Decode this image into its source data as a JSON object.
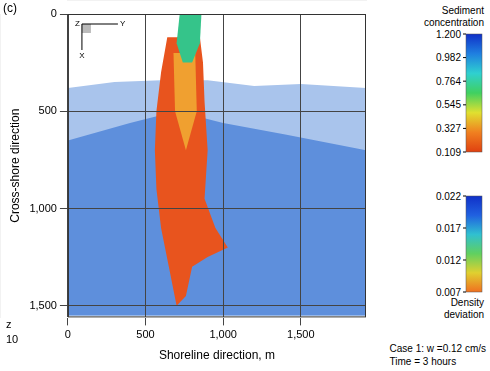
{
  "chart_data": {
    "type": "area",
    "panel_label": "(c)",
    "x_label": "Shoreline direction, m",
    "y_label": "Cross-shore direction",
    "xlim": [
      0,
      1920
    ],
    "xticks": [
      0,
      500,
      1000,
      1500
    ],
    "ylim": [
      0,
      1560
    ],
    "yticks": [
      0,
      500,
      1000,
      1500
    ],
    "grid": true,
    "axes_labels": [
      "Z",
      "Y",
      "X"
    ],
    "corner_labels": [
      "z",
      "10"
    ],
    "annotations": [
      "Case 1: w =0.12 cm/s",
      "Time = 3 hours"
    ],
    "series": [
      {
        "color": "#a9c4ec",
        "x": [
          0,
          300,
          600,
          900,
          1200,
          1500,
          1920,
          1920,
          0
        ],
        "values": [
          380,
          350,
          340,
          340,
          370,
          360,
          380,
          1550,
          1550
        ]
      },
      {
        "color": "#5e8fdc",
        "x": [
          0,
          400,
          700,
          1000,
          1400,
          1920,
          1920,
          0
        ],
        "values": [
          650,
          560,
          500,
          560,
          620,
          700,
          1550,
          1550
        ]
      },
      {
        "color": "#e8541e",
        "x": [
          640,
          600,
          570,
          560,
          570,
          600,
          650,
          700,
          760,
          800,
          900,
          1030,
          950,
          880,
          900,
          880,
          870,
          850
        ],
        "values": [
          120,
          300,
          500,
          700,
          900,
          1100,
          1300,
          1500,
          1450,
          1300,
          1250,
          1200,
          1100,
          950,
          700,
          450,
          250,
          120
        ]
      },
      {
        "color": "#f0a030",
        "x": [
          680,
          820,
          830,
          760,
          690
        ],
        "values": [
          200,
          200,
          500,
          700,
          500
        ]
      },
      {
        "color": "#35c48a",
        "x": [
          720,
          860,
          850,
          800,
          740,
          700
        ],
        "values": [
          0,
          0,
          150,
          250,
          250,
          150
        ]
      }
    ],
    "colorbars": [
      {
        "title": "Sediment concentration",
        "ticks": [
          {
            "value": 1.2,
            "label": "1.200"
          },
          0.982,
          0.764,
          0.545,
          0.327,
          0.109
        ]
      },
      {
        "title": "Density deviation",
        "ticks": [
          0.022,
          0.017,
          0.012,
          0.007
        ]
      }
    ]
  }
}
